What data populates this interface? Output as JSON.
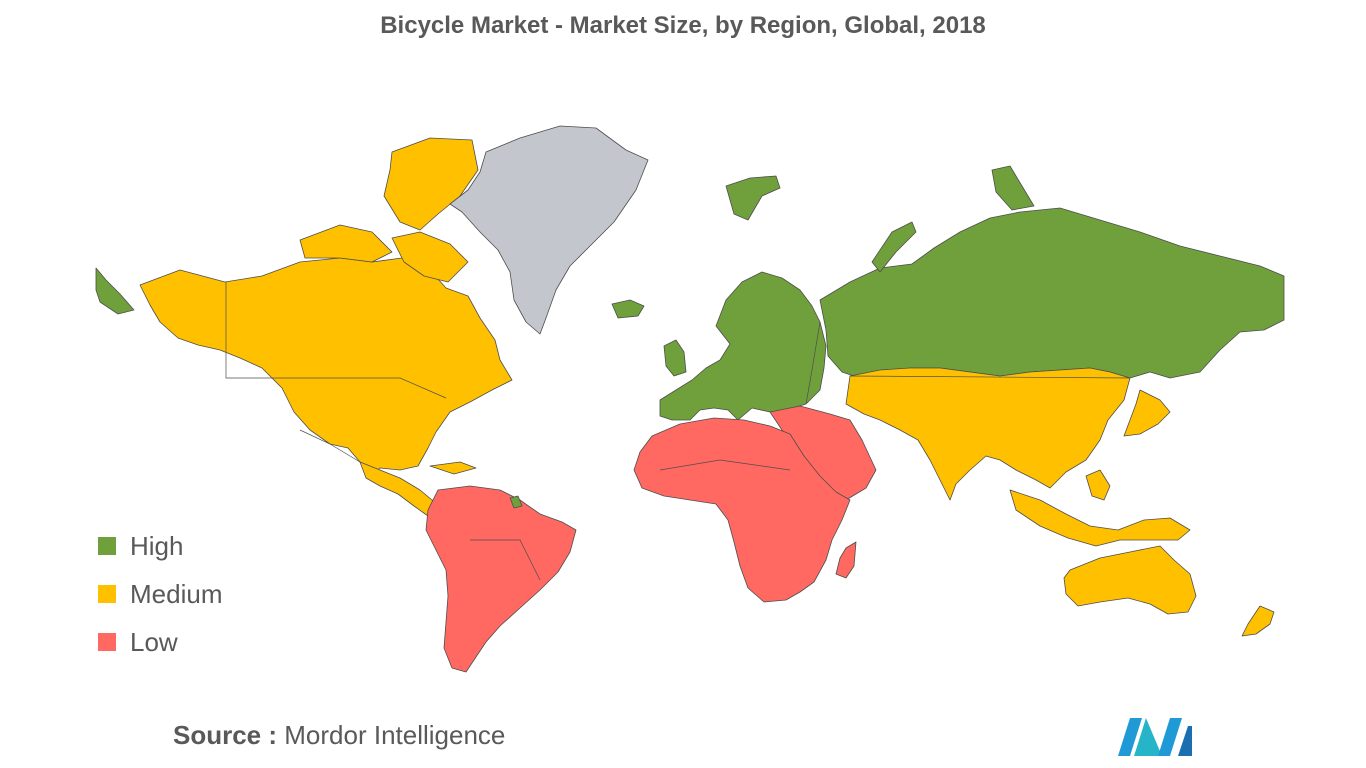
{
  "title": "Bicycle Market - Market Size, by Region, Global, 2018",
  "legend": [
    {
      "key": "high",
      "label": "High",
      "color": "#70a03c"
    },
    {
      "key": "medium",
      "label": "Medium",
      "color": "#ffc000"
    },
    {
      "key": "low",
      "label": "Low",
      "color": "#ff6961"
    }
  ],
  "no_data_color": "#c3c6cc",
  "regions": {
    "north_america": "medium",
    "greenland": "no-data",
    "central_america_caribbean": "medium",
    "south_america": "low",
    "french_guiana": "high",
    "europe": "high",
    "russia": "high",
    "africa": "low",
    "middle_east": "low",
    "asia": "medium",
    "japan": "medium",
    "southeast_asia": "medium",
    "australia": "medium",
    "new_zealand": "medium",
    "madagascar": "low"
  },
  "source": {
    "prefix": "Source :",
    "name": "Mordor Intelligence"
  },
  "logo": {
    "icon": "mordor-intelligence-logo"
  }
}
